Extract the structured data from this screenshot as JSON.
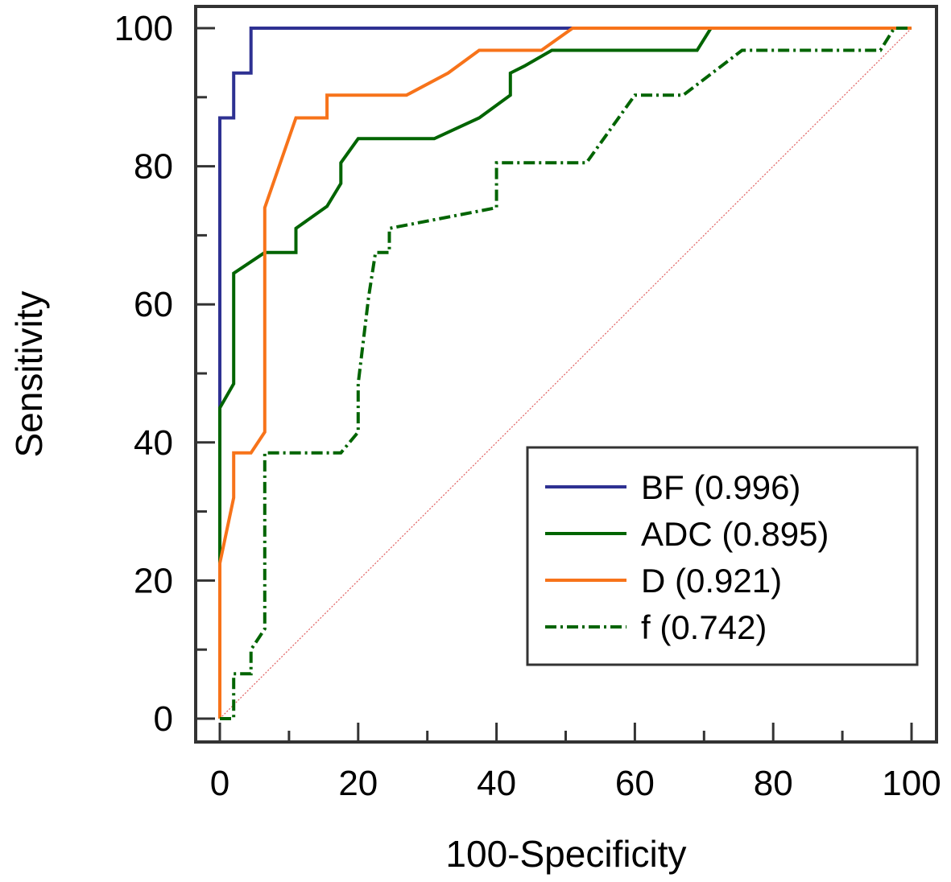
{
  "chart_data": {
    "type": "line",
    "title": "",
    "xlabel": "100-Specificity",
    "ylabel": "Sensitivity",
    "xlim": [
      0,
      100
    ],
    "ylim": [
      0,
      100
    ],
    "x_ticks": [
      0,
      20,
      40,
      60,
      80,
      100
    ],
    "y_ticks": [
      0,
      20,
      40,
      60,
      80,
      100
    ],
    "x_tick_labels": [
      "0",
      "20",
      "40",
      "60",
      "80",
      "100"
    ],
    "y_tick_labels": [
      "0",
      "20",
      "40",
      "60",
      "80",
      "100"
    ],
    "legend_position": "bottom-right",
    "reference_line": {
      "name": "chance",
      "x": [
        0,
        100
      ],
      "y": [
        0,
        100
      ],
      "color": "#e06060",
      "style": "dotted"
    },
    "series": [
      {
        "name": "BF (0.996)",
        "color": "#2e3192",
        "style": "solid",
        "x": [
          0,
          0,
          2,
          2,
          4.5,
          4.5,
          100
        ],
        "y": [
          0,
          87,
          87,
          93.5,
          93.5,
          100,
          100
        ]
      },
      {
        "name": "ADC (0.895)",
        "color": "#006400",
        "style": "solid",
        "x": [
          0,
          0,
          2,
          2,
          6.5,
          11,
          11,
          15.5,
          17.5,
          17.5,
          20,
          31,
          37.5,
          42,
          42,
          44,
          48,
          69,
          71,
          100
        ],
        "y": [
          0,
          45,
          48.5,
          64.5,
          67.5,
          67.5,
          71,
          74.2,
          77.5,
          80.5,
          84,
          84,
          87,
          90.3,
          93.5,
          94.5,
          96.8,
          96.8,
          100,
          100
        ]
      },
      {
        "name": "D (0.921)",
        "color": "#f7731a",
        "style": "solid",
        "x": [
          0,
          0,
          2,
          2,
          4.5,
          6.5,
          6.5,
          11,
          15.5,
          15.5,
          27,
          33,
          37.5,
          46.5,
          51,
          100
        ],
        "y": [
          0,
          22.5,
          32,
          38.5,
          38.5,
          41.5,
          74,
          87,
          87,
          90.3,
          90.3,
          93.5,
          96.8,
          96.8,
          100,
          100
        ]
      },
      {
        "name": "f (0.742)",
        "color": "#006400",
        "style": "dashdot",
        "x": [
          0,
          2,
          2,
          4.5,
          4.5,
          6.5,
          6.5,
          17.5,
          20,
          20,
          21.5,
          22.5,
          24.5,
          24.5,
          40,
          40,
          53,
          60,
          67,
          75.5,
          95.5,
          97.5,
          100
        ],
        "y": [
          0,
          0,
          6.5,
          6.5,
          10,
          13,
          38.5,
          38.5,
          41.5,
          48.5,
          61,
          67.5,
          67.5,
          71,
          74,
          80.5,
          80.5,
          90.3,
          90.3,
          96.8,
          96.8,
          100,
          100
        ]
      }
    ]
  }
}
